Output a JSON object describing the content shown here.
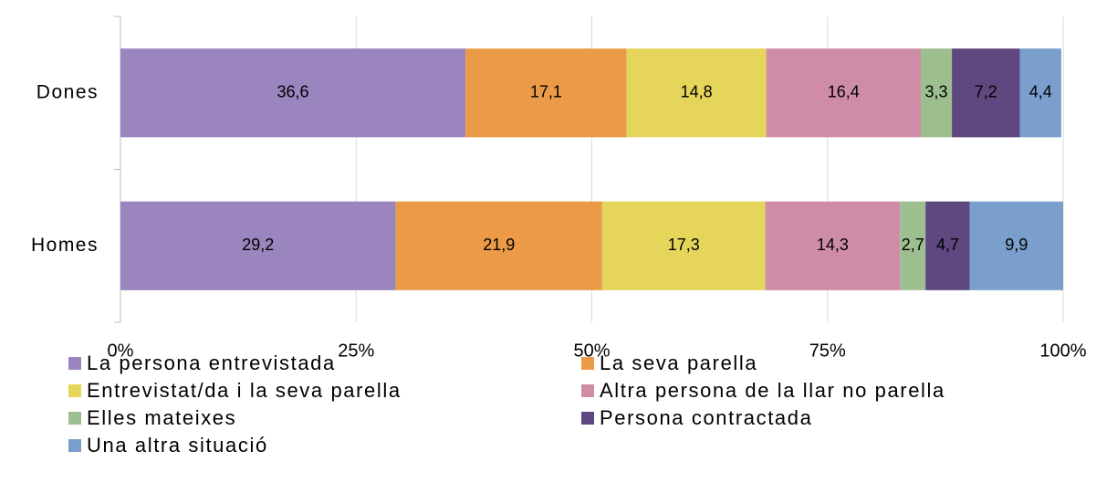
{
  "chart_data": {
    "type": "stacked-bar-horizontal",
    "categories": [
      "Dones",
      "Homes"
    ],
    "series": [
      {
        "name": "La persona entrevistada",
        "color": "#9a85be",
        "values": [
          36.6,
          29.2
        ],
        "value_labels": [
          "36,6",
          "29,2"
        ]
      },
      {
        "name": "La seva parella",
        "color": "#eb9b48",
        "values": [
          17.1,
          21.9
        ],
        "value_labels": [
          "17,1",
          "21,9"
        ]
      },
      {
        "name": "Entrevistat/da i la seva parella",
        "color": "#e5d55a",
        "values": [
          14.8,
          17.3
        ],
        "value_labels": [
          "14,8",
          "17,3"
        ]
      },
      {
        "name": "Altra persona de la llar no parella",
        "color": "#cf8ca6",
        "values": [
          16.4,
          14.3
        ],
        "value_labels": [
          "16,4",
          "14,3"
        ]
      },
      {
        "name": "Elles mateixes",
        "color": "#9dbf8f",
        "values": [
          3.3,
          2.7
        ],
        "value_labels": [
          "3,3",
          "2,7"
        ]
      },
      {
        "name": "Persona contractada",
        "color": "#5f477f",
        "values": [
          7.2,
          4.7
        ],
        "value_labels": [
          "7,2",
          "4,7"
        ]
      },
      {
        "name": "Una altra situació",
        "color": "#7a9fcc",
        "values": [
          4.4,
          9.9
        ],
        "value_labels": [
          "4,4",
          "9,9"
        ]
      }
    ],
    "xlim": [
      0,
      100
    ],
    "xticks": [
      {
        "value": 0,
        "label": "0%"
      },
      {
        "value": 25,
        "label": "25%"
      },
      {
        "value": 50,
        "label": "50%"
      },
      {
        "value": 75,
        "label": "75%"
      },
      {
        "value": 100,
        "label": "100%"
      }
    ],
    "grid": true,
    "legend": "bottom"
  }
}
